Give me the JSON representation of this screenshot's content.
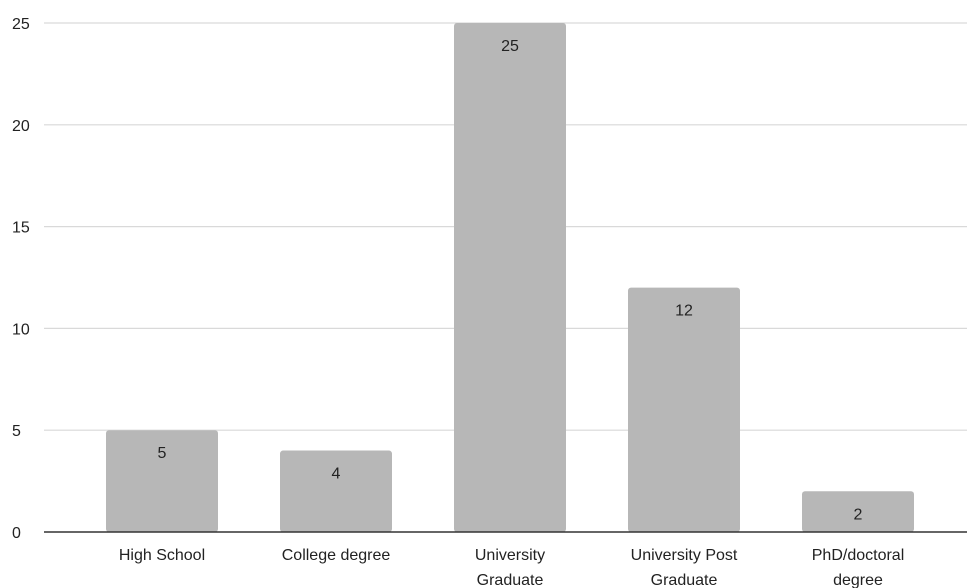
{
  "chart_data": {
    "type": "bar",
    "title": "",
    "xlabel": "",
    "ylabel": "",
    "categories": [
      [
        "High School"
      ],
      [
        "College degree"
      ],
      [
        "University",
        "Graduate"
      ],
      [
        "University Post",
        "Graduate"
      ],
      [
        "PhD/doctoral",
        "degree"
      ]
    ],
    "values": [
      5,
      4,
      25,
      12,
      2
    ],
    "data_labels": [
      "5",
      "4",
      "25",
      "12",
      "2"
    ],
    "ylim": [
      0,
      25
    ],
    "yticks": [
      0,
      5,
      10,
      15,
      20,
      25
    ],
    "ytick_labels": [
      "0",
      "5",
      "10",
      "15",
      "20",
      "25"
    ],
    "grid": true,
    "legend": "none",
    "colors": {
      "bar": "#b7b7b7",
      "grid": "#d9d9d9",
      "axis": "#333333"
    }
  }
}
